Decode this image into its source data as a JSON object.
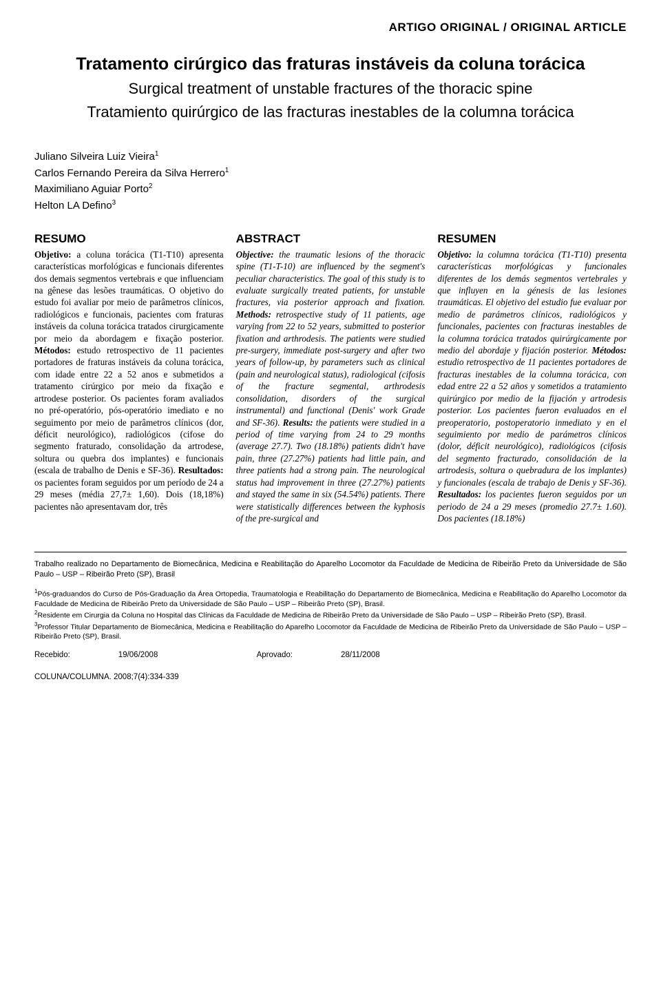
{
  "article_type": "ARTIGO ORIGINAL / ORIGINAL ARTICLE",
  "titles": {
    "pt": "Tratamento cirúrgico das fraturas instáveis da coluna torácica",
    "en": "Surgical treatment of unstable fractures of the thoracic spine",
    "es": "Tratamiento quirúrgico de las fracturas inestables de la columna torácica"
  },
  "authors": [
    {
      "name": "Juliano Silveira Luiz Vieira",
      "sup": "1"
    },
    {
      "name": "Carlos Fernando Pereira da Silva Herrero",
      "sup": "1"
    },
    {
      "name": "Maximiliano Aguiar Porto",
      "sup": "2"
    },
    {
      "name": "Helton LA Defino",
      "sup": "3"
    }
  ],
  "resumo": {
    "heading": "RESUMO",
    "objetivo_label": "Objetivo:",
    "objetivo": " a coluna torácica (T1-T10) apresenta características morfológicas e funcionais diferentes dos demais segmentos vertebrais e que influenciam na gênese das lesões traumáticas. O objetivo do estudo foi avaliar por meio de parâmetros clínicos, radiológicos e funcionais, pacientes com fraturas instáveis da coluna torácica tratados cirurgicamente por meio da abordagem e fixação posterior. ",
    "metodos_label": "Métodos:",
    "metodos": " estudo retrospectivo de 11 pacientes portadores de fraturas instáveis da coluna torácica, com idade entre 22 a 52 anos e submetidos a tratamento cirúrgico por meio da fixação e artrodese posterior. Os pacientes foram avaliados no pré-operatório, pós-operatório imediato e no seguimento por meio de parâmetros clínicos (dor, déficit neurológico), radiológicos (cifose do segmento fraturado, consolidação da artrodese, soltura ou quebra dos implantes) e funcionais (escala de trabalho de Denis e SF-36). ",
    "resultados_label": "Resultados:",
    "resultados": " os pacientes foram seguidos por um período de 24 a 29 meses (média 27,7± 1,60). Dois (18,18%) pacientes não apresentavam dor, três"
  },
  "abstract": {
    "heading": "ABSTRACT",
    "objective_label": "Objective:",
    "objective": " the traumatic lesions of the thoracic spine (T1-T-10) are influenced by the segment's peculiar characteristics. The goal of this study is to evaluate surgically treated patients, for unstable fractures, via posterior approach and fixation. ",
    "methods_label": "Methods:",
    "methods": " retrospective study of 11 patients, age varying from 22 to 52 years, submitted to posterior fixation and arthrodesis. The patients were studied pre-surgery, immediate post-surgery and after two years of follow-up, by parameters such as clinical (pain and neurological status), radiological (cifosis of the fracture segmental, arthrodesis consolidation, disorders of the surgical instrumental) and functional (Denis' work Grade and SF-36). ",
    "results_label": "Results:",
    "results": " the patients were studied in a period of time varying from 24 to 29 months (average 27.7). Two (18.18%) patients didn't have pain, three (27.27%) patients had little pain, and three patients had a strong pain. The neurological status had improvement in three (27.27%) patients and stayed the same in six (54.54%) patients. There were statistically differences between the kyphosis of the pre-surgical and"
  },
  "resumen": {
    "heading": "RESUMEN",
    "objetivo_label": "Objetivo:",
    "objetivo": " la columna torácica (T1-T10) presenta características morfológicas y funcionales diferentes de los demás segmentos vertebrales y que influyen en la génesis de las lesiones traumáticas. El objetivo del estudio fue evaluar por medio de parámetros clínicos, radiológicos y funcionales, pacientes con fracturas inestables de la columna torácica tratados quirúrgicamente por medio del abordaje y fijación posterior. ",
    "metodos_label": "Métodos:",
    "metodos": " estudio retrospectivo de 11 pacientes portadores de fracturas inestables de la columna torácica, con edad entre 22 a 52 años y sometidos a tratamiento quirúrgico por medio de la fijación y artrodesis posterior. Los pacientes fueron evaluados en el preoperatorio, postoperatorio inmediato y en el seguimiento por medio de parámetros clínicos (dolor, déficit neurológico), radiológicos (cifosis del segmento fracturado, consolidación de la artrodesis, soltura o quebradura de los implantes) y funcionales (escala de trabajo de Denis y SF-36). ",
    "resultados_label": "Resultados:",
    "resultados": " los pacientes fueron seguidos por un periodo de 24 a 29 meses (promedio 27.7± 1.60). Dos pacientes (18.18%)"
  },
  "affiliation": "Trabalho realizado no Departamento de Biomecânica, Medicina e Reabilitação do Aparelho Locomotor da Faculdade de Medicina de Ribeirão Preto da Universidade de São Paulo – USP – Ribeirão Preto (SP), Brasil",
  "footnotes": {
    "f1": "Pós-graduandos do Curso de Pós-Graduação da Área Ortopedia, Traumatologia e Reabilitação do Departamento de Biomecânica, Medicina e Reabilitação do Aparelho Locomotor da Faculdade de Medicina de Ribeirão Preto da Universidade de São Paulo – USP – Ribeirão Preto (SP), Brasil.",
    "f2": "Residente em Cirurgia da Coluna no Hospital das Clínicas da Faculdade de Medicina de Ribeirão Preto da Universidade de São Paulo – USP – Ribeirão Preto (SP), Brasil.",
    "f3": "Professor Titular Departamento de Biomecânica, Medicina e Reabilitação do Aparelho Locomotor da Faculdade de Medicina de Ribeirão Preto da Universidade de São Paulo – USP – Ribeirão Preto (SP), Brasil."
  },
  "dates": {
    "received_label": "Recebido: ",
    "received": "19/06/2008",
    "approved_label": "Aprovado: ",
    "approved": "28/11/2008"
  },
  "journal": "COLUNA/COLUMNA. 2008;7(4):334-339",
  "style": {
    "font_body": "Georgia, Times New Roman, serif",
    "font_sans": "Arial, Helvetica, sans-serif",
    "bg": "#ffffff",
    "text": "#000000",
    "title_size_pt": 25,
    "subtitle_size_pt": 22,
    "abstract_size_pt": 13.2,
    "footnote_size_pt": 10.5
  }
}
